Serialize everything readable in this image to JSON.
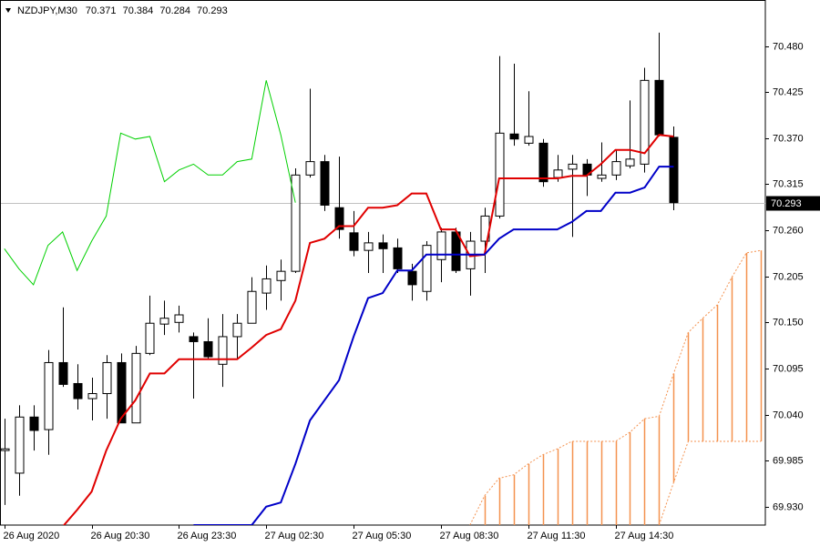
{
  "chart_data": {
    "type": "candlestick",
    "symbol": "NZDJPY,M30",
    "open": [
      69.997,
      69.97,
      70.037,
      70.022,
      70.102,
      70.077,
      70.059,
      70.065,
      70.102,
      70.03,
      70.113,
      70.148,
      70.15,
      70.133,
      70.127,
      70.1,
      70.133,
      70.149,
      70.185,
      70.2,
      70.211,
      70.326,
      70.342,
      70.287,
      70.257,
      70.236,
      70.245,
      70.239,
      70.211,
      70.187,
      70.225,
      70.258,
      70.214,
      70.247,
      70.277,
      70.375,
      70.364,
      70.364,
      70.323,
      70.333,
      70.339,
      70.322,
      70.326,
      70.337,
      70.339,
      70.439,
      70.371
    ],
    "high": [
      70.035,
      70.051,
      70.051,
      70.117,
      70.168,
      70.1,
      70.084,
      70.111,
      70.113,
      70.122,
      70.182,
      70.176,
      70.17,
      70.138,
      70.155,
      70.16,
      70.16,
      70.204,
      70.218,
      70.225,
      70.334,
      70.429,
      70.35,
      70.348,
      70.283,
      70.258,
      70.255,
      70.25,
      70.22,
      70.247,
      70.263,
      70.263,
      70.258,
      70.287,
      70.468,
      70.459,
      70.426,
      70.369,
      70.35,
      70.35,
      70.345,
      70.365,
      70.356,
      70.415,
      70.454,
      70.496,
      70.384
    ],
    "low": [
      69.932,
      69.943,
      69.997,
      69.992,
      70.073,
      70.046,
      70.033,
      70.035,
      70.03,
      70.03,
      70.111,
      70.135,
      70.138,
      70.059,
      70.106,
      70.073,
      70.106,
      70.149,
      70.165,
      70.176,
      70.209,
      70.323,
      70.283,
      70.25,
      70.229,
      70.209,
      70.209,
      70.209,
      70.176,
      70.176,
      70.198,
      70.209,
      70.182,
      70.209,
      70.274,
      70.361,
      70.361,
      70.312,
      70.318,
      70.252,
      70.301,
      70.318,
      70.32,
      70.334,
      70.329,
      70.372,
      70.284
    ],
    "close": [
      69.999,
      70.037,
      70.021,
      70.102,
      70.076,
      70.059,
      70.065,
      70.102,
      70.03,
      70.113,
      70.149,
      70.155,
      70.159,
      70.127,
      70.109,
      70.133,
      70.149,
      70.187,
      70.202,
      70.211,
      70.326,
      70.342,
      70.29,
      70.261,
      70.236,
      70.245,
      70.238,
      70.214,
      70.195,
      70.242,
      70.258,
      70.212,
      70.247,
      70.277,
      70.376,
      70.369,
      70.372,
      70.318,
      70.332,
      70.339,
      70.326,
      70.326,
      70.342,
      70.345,
      70.439,
      70.374,
      70.293
    ],
    "lines": [
      {
        "color": "#e00000",
        "values": [
          null,
          null,
          null,
          null,
          69.906,
          69.926,
          69.948,
          69.997,
          70.035,
          70.057,
          70.089,
          70.089,
          70.106,
          70.106,
          70.106,
          70.106,
          70.106,
          70.12,
          70.135,
          70.142,
          70.176,
          70.245,
          70.25,
          70.265,
          70.265,
          70.287,
          70.287,
          70.29,
          70.304,
          70.304,
          70.261,
          70.261,
          70.229,
          70.231,
          70.322,
          70.322,
          70.322,
          70.322,
          70.322,
          70.325,
          70.325,
          70.339,
          70.356,
          70.356,
          70.352,
          70.374,
          70.372,
          null,
          null,
          null,
          null,
          null,
          null
        ]
      },
      {
        "color": "#0000c8",
        "values": [
          null,
          null,
          null,
          null,
          null,
          null,
          null,
          null,
          null,
          null,
          null,
          null,
          null,
          69.908,
          69.908,
          69.908,
          69.908,
          69.908,
          69.93,
          69.935,
          69.981,
          70.033,
          70.057,
          70.081,
          70.133,
          70.179,
          70.185,
          70.212,
          70.212,
          70.231,
          70.231,
          70.231,
          70.231,
          70.231,
          70.25,
          70.261,
          70.261,
          70.261,
          70.261,
          70.27,
          70.283,
          70.283,
          70.305,
          70.305,
          70.311,
          70.336,
          70.336,
          null,
          null,
          null,
          null,
          null,
          null
        ]
      },
      {
        "color": "#00d000",
        "values": [
          70.238,
          70.214,
          70.195,
          70.242,
          70.258,
          70.212,
          70.247,
          70.277,
          70.376,
          70.369,
          70.372,
          70.318,
          70.332,
          70.339,
          70.326,
          70.326,
          70.342,
          70.345,
          70.439,
          70.374,
          70.293,
          null,
          null,
          null,
          null,
          null,
          null,
          null,
          null,
          null,
          null,
          null,
          null,
          null,
          null,
          null,
          null,
          null,
          null,
          null,
          null,
          null,
          null,
          null,
          null,
          null,
          null,
          null,
          null,
          null,
          null,
          null,
          null
        ]
      }
    ],
    "cloud": {
      "color": "#f4924f",
      "span_a": [
        null,
        null,
        null,
        null,
        null,
        null,
        null,
        null,
        null,
        null,
        null,
        null,
        null,
        null,
        null,
        null,
        null,
        null,
        null,
        null,
        null,
        null,
        null,
        null,
        null,
        null,
        null,
        null,
        null,
        null,
        null,
        null,
        69.908,
        69.943,
        69.964,
        69.968,
        69.981,
        69.992,
        69.999,
        70.008,
        70.008,
        70.008,
        70.008,
        70.019,
        70.035,
        70.038,
        70.089,
        70.138,
        70.155,
        70.171,
        70.204,
        70.233,
        70.236
      ],
      "span_b": [
        null,
        null,
        null,
        null,
        null,
        null,
        null,
        null,
        null,
        null,
        null,
        null,
        null,
        null,
        null,
        null,
        null,
        null,
        null,
        null,
        null,
        null,
        null,
        null,
        null,
        null,
        null,
        null,
        null,
        null,
        null,
        null,
        null,
        null,
        null,
        null,
        null,
        null,
        null,
        null,
        null,
        null,
        null,
        null,
        null,
        69.908,
        69.959,
        70.008,
        70.008,
        70.008,
        70.008,
        70.008,
        70.008
      ]
    },
    "xlim": [
      -0.3,
      52.3
    ],
    "ylim": [
      69.908,
      70.535
    ],
    "xticks": [
      {
        "value": 0,
        "label": "26 Aug 2020"
      },
      {
        "value": 6,
        "label": "26 Aug 20:30"
      },
      {
        "value": 12,
        "label": "26 Aug 23:30"
      },
      {
        "value": 18,
        "label": "27 Aug 02:30"
      },
      {
        "value": 24,
        "label": "27 Aug 05:30"
      },
      {
        "value": 30,
        "label": "27 Aug 08:30"
      },
      {
        "value": 36,
        "label": "27 Aug 11:30"
      },
      {
        "value": 42,
        "label": "27 Aug 14:30"
      }
    ],
    "yticks": [
      {
        "value": 69.93,
        "label": "69.930"
      },
      69.985,
      {
        "value": 70.04,
        "label": "70.040"
      },
      70.095,
      {
        "value": 70.15,
        "label": "70.150"
      },
      70.205,
      {
        "value": 70.26,
        "label": "70.260"
      },
      70.315,
      {
        "value": 70.37,
        "label": "70.370"
      },
      70.425,
      {
        "value": 70.48,
        "label": "70.480"
      }
    ],
    "current_price": 70.293,
    "grid": false
  }
}
